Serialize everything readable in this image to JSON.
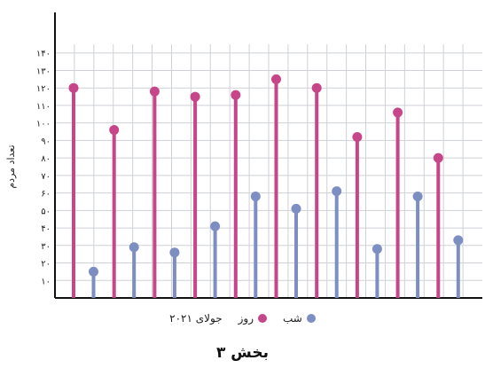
{
  "chart_data": {
    "type": "lollipop",
    "ylabel": "تعداد مردم",
    "ylim": [
      0,
      150
    ],
    "y_ticks": [
      10,
      20,
      30,
      40,
      50,
      60,
      70,
      80,
      90,
      100,
      110,
      120,
      130,
      140
    ],
    "y_tick_labels": [
      "۱۰",
      "۲۰",
      "۳۰",
      "۴۰",
      "۵۰",
      "۶۰",
      "۷۰",
      "۸۰",
      "۹۰",
      "۱۰۰",
      "۱۱۰",
      "۱۲۰",
      "۱۳۰",
      "۱۴۰"
    ],
    "grid": true,
    "legend_position": "bottom",
    "series": [
      {
        "name": "روز",
        "color": "#c7468a",
        "values": [
          120,
          96,
          118,
          115,
          116,
          125,
          120,
          92,
          106,
          80
        ]
      },
      {
        "name": "شب",
        "color": "#7d8fc2",
        "values": [
          15,
          29,
          26,
          41,
          58,
          51,
          61,
          28,
          58,
          33
        ]
      }
    ]
  },
  "legend": {
    "label": "جولای ۲۰۲۱",
    "day": "روز",
    "night": "شب"
  },
  "caption": "بخش ۳",
  "colors": {
    "day": "#c7468a",
    "night": "#7d8fc2",
    "grid": "#cfd1d6",
    "axis": "#111111"
  }
}
